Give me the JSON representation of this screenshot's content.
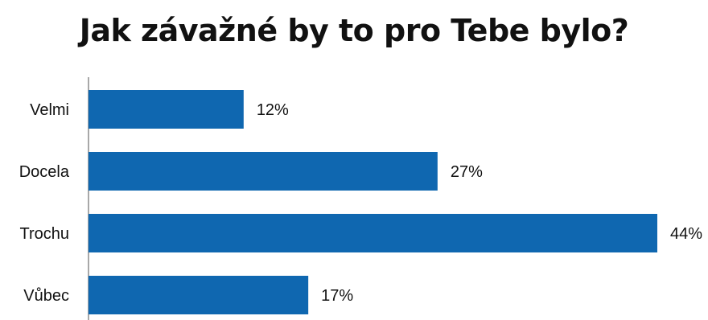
{
  "chart_data": {
    "type": "bar",
    "orientation": "horizontal",
    "title": "Jak závažné by to pro Tebe bylo?",
    "categories": [
      "Velmi",
      "Docela",
      "Trochu",
      "Vůbec"
    ],
    "values": [
      12,
      27,
      44,
      17
    ],
    "value_labels": [
      "12%",
      "27%",
      "44%",
      "17%"
    ],
    "unit": "%",
    "xlim": [
      0,
      44
    ],
    "grid": false,
    "legend": "none",
    "bar_color": "#0f67b0"
  }
}
